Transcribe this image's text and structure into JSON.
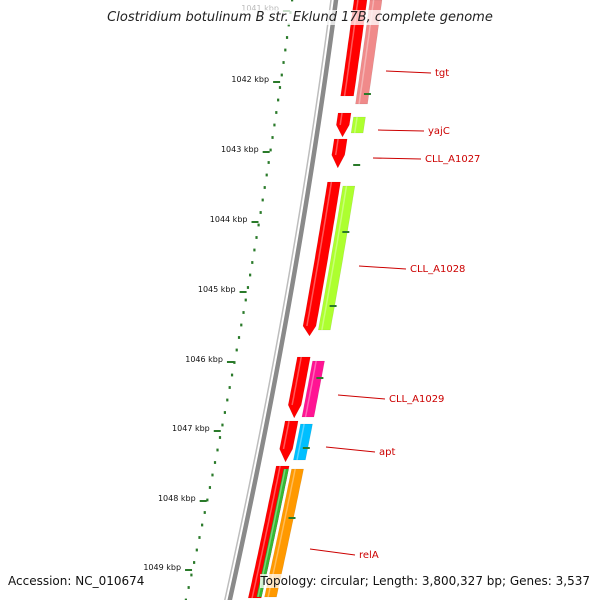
{
  "title": "Clostridium botulinum B str. Eklund 17B, complete genome",
  "accession": "Accession: NC_010674",
  "topology": "Topology: circular; Length: 3,800,327 bp; Genes: 3,537",
  "ruler": {
    "labels": [
      "1041 kbp",
      "1042 kbp",
      "1043 kbp",
      "1044 kbp",
      "1045 kbp",
      "1046 kbp",
      "1047 kbp",
      "1048 kbp",
      "1049 kbp"
    ],
    "colors": {
      "ruler": "#2a7a2a",
      "backbone": "#888888"
    }
  },
  "genes": [
    {
      "name": "tgt",
      "color": "#f08a8a"
    },
    {
      "name": "yajC",
      "color": "#adff2f"
    },
    {
      "name": "CLL_A1027",
      "color": ""
    },
    {
      "name": "CLL_A1028",
      "color": "#adff2f"
    },
    {
      "name": "CLL_A1029",
      "color": "#ff1493"
    },
    {
      "name": "apt",
      "color": "#00bfff"
    },
    {
      "name": "relA",
      "color": "#ff9900"
    }
  ],
  "colors": {
    "cds": "#ff0000",
    "label": "#cc0000"
  }
}
